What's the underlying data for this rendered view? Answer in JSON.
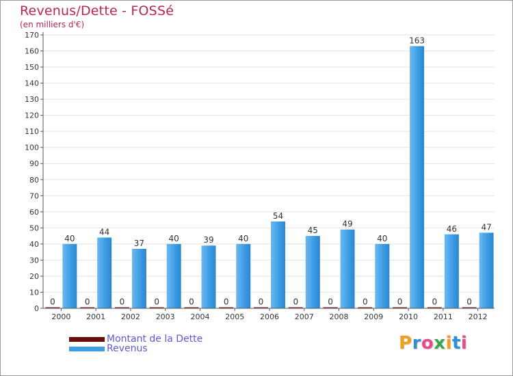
{
  "title": "Revenus/Dette - FOSSé",
  "subtitle": "(en milliers d'€)",
  "brand": "Proxiti",
  "colors": {
    "title": "#b8235a",
    "dette": "#6b0b0b",
    "revenus": "#3d9ee5",
    "legend_text": "#5b5bd6"
  },
  "legend": [
    {
      "label": "Montant de la Dette",
      "color": "#6b0b0b"
    },
    {
      "label": "Revenus",
      "color": "#3d9ee5"
    }
  ],
  "chart_data": {
    "type": "bar",
    "title": "Revenus/Dette - FOSSé",
    "ylabel": "(en milliers d'€)",
    "xlabel": "",
    "categories": [
      "2000",
      "2001",
      "2002",
      "2003",
      "2004",
      "2005",
      "2006",
      "2007",
      "2008",
      "2009",
      "2010",
      "2011",
      "2012"
    ],
    "series": [
      {
        "name": "Montant de la Dette",
        "values": [
          0,
          0,
          0,
          0,
          0,
          0,
          0,
          0,
          0,
          0,
          0,
          0,
          0
        ]
      },
      {
        "name": "Revenus",
        "values": [
          40,
          44,
          37,
          40,
          39,
          40,
          54,
          45,
          49,
          40,
          163,
          46,
          47
        ]
      }
    ],
    "ylim": [
      0,
      170
    ],
    "yticks": [
      0,
      10,
      20,
      30,
      40,
      50,
      60,
      70,
      80,
      90,
      100,
      110,
      120,
      130,
      140,
      150,
      160,
      170
    ],
    "grid": true,
    "legend_position": "bottom-left"
  }
}
